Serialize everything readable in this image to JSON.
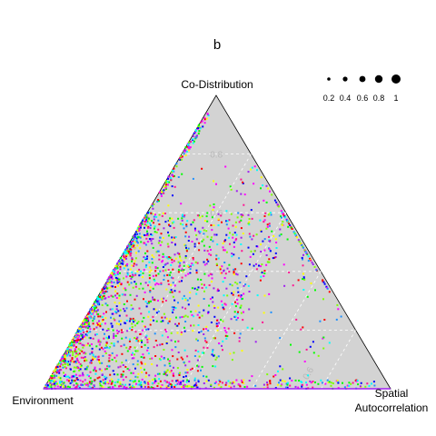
{
  "chart_data": {
    "type": "scatter",
    "subtype": "ternary",
    "title": "b",
    "axes": {
      "top": "Co-Distribution",
      "left": "Environment",
      "right": [
        "Spatial",
        "Autocorrelation"
      ]
    },
    "grid": true,
    "grid_tick_labels": [
      "0.8",
      "0.6",
      "0.6"
    ],
    "size_legend": {
      "placement": "top-right",
      "labels": [
        "0.2",
        "0.4",
        "0.6",
        "0.8",
        "1"
      ],
      "values": [
        0.2,
        0.4,
        0.6,
        0.8,
        1.0
      ]
    },
    "point_colors": [
      "#ff0000",
      "#00ff00",
      "#0000ff",
      "#ff00ff",
      "#a020f0",
      "#00ffff",
      "#ffff00",
      "#7fff00",
      "#1e90ff",
      "#ff1493"
    ],
    "background_color": "#d3d3d3",
    "n_points": 2500,
    "distribution": "points concentrated toward the Environment corner: Environment share mostly 0.4–0.9, Co-Distribution share mostly 0–0.5, Spatial Autocorrelation share mostly 0–0.35; dense band along the left edge (Spatial Autocorrelation ≈ 0)"
  }
}
